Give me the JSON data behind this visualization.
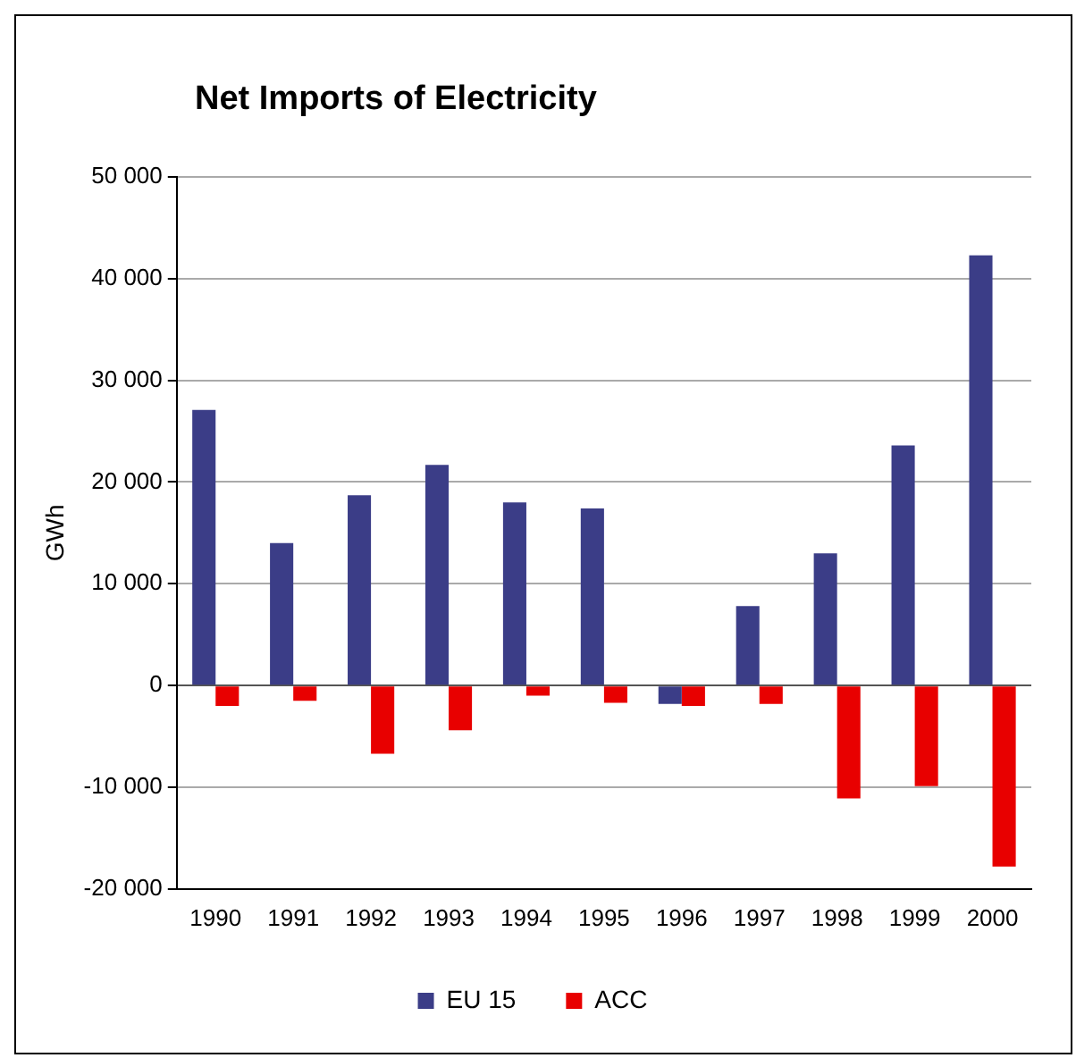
{
  "chart_data": {
    "type": "bar",
    "title": "Net Imports of Electricity",
    "ylabel": "GWh",
    "categories": [
      "1990",
      "1991",
      "1992",
      "1993",
      "1994",
      "1995",
      "1996",
      "1997",
      "1998",
      "1999",
      "2000"
    ],
    "series": [
      {
        "name": "EU 15",
        "color": "#3b3d87",
        "values": [
          27100,
          14000,
          18700,
          21700,
          18000,
          17400,
          -1800,
          7800,
          13000,
          23600,
          42300
        ]
      },
      {
        "name": "ACC",
        "color": "#e80000",
        "values": [
          -2000,
          -1500,
          -6700,
          -4400,
          -1000,
          -1700,
          -2000,
          -1800,
          -11100,
          -9900,
          -17800
        ]
      }
    ],
    "ylim": [
      -20000,
      50000
    ],
    "yticks": [
      {
        "value": -20000,
        "label": "-20 000"
      },
      {
        "value": -10000,
        "label": "-10 000"
      },
      {
        "value": 0,
        "label": "0"
      },
      {
        "value": 10000,
        "label": "10 000"
      },
      {
        "value": 20000,
        "label": "20 000"
      },
      {
        "value": 30000,
        "label": "30 000"
      },
      {
        "value": 40000,
        "label": "40 000"
      },
      {
        "value": 50000,
        "label": "50 000"
      }
    ],
    "grid": "y",
    "legend": "bottom"
  }
}
